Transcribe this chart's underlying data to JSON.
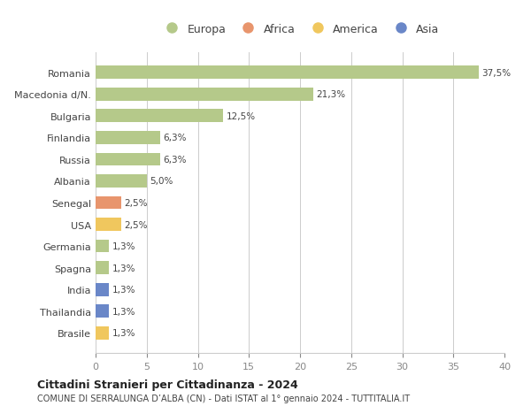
{
  "countries": [
    "Romania",
    "Macedonia d/N.",
    "Bulgaria",
    "Finlandia",
    "Russia",
    "Albania",
    "Senegal",
    "USA",
    "Germania",
    "Spagna",
    "India",
    "Thailandia",
    "Brasile"
  ],
  "values": [
    37.5,
    21.3,
    12.5,
    6.3,
    6.3,
    5.0,
    2.5,
    2.5,
    1.3,
    1.3,
    1.3,
    1.3,
    1.3
  ],
  "labels": [
    "37,5%",
    "21,3%",
    "12,5%",
    "6,3%",
    "6,3%",
    "5,0%",
    "2,5%",
    "2,5%",
    "1,3%",
    "1,3%",
    "1,3%",
    "1,3%",
    "1,3%"
  ],
  "continent": [
    "Europa",
    "Europa",
    "Europa",
    "Europa",
    "Europa",
    "Europa",
    "Africa",
    "America",
    "Europa",
    "Europa",
    "Asia",
    "Asia",
    "America"
  ],
  "colors": {
    "Europa": "#b5c98a",
    "Africa": "#e8956d",
    "America": "#f0c75e",
    "Asia": "#6a87c8"
  },
  "legend_order": [
    "Europa",
    "Africa",
    "America",
    "Asia"
  ],
  "xlim": [
    0,
    40
  ],
  "xticks": [
    0,
    5,
    10,
    15,
    20,
    25,
    30,
    35,
    40
  ],
  "title": "Cittadini Stranieri per Cittadinanza - 2024",
  "subtitle": "COMUNE DI SERRALUNGA D’ALBA (CN) - Dati ISTAT al 1° gennaio 2024 - TUTTITALIA.IT",
  "bg_color": "#ffffff",
  "grid_color": "#cccccc",
  "bar_height": 0.6
}
